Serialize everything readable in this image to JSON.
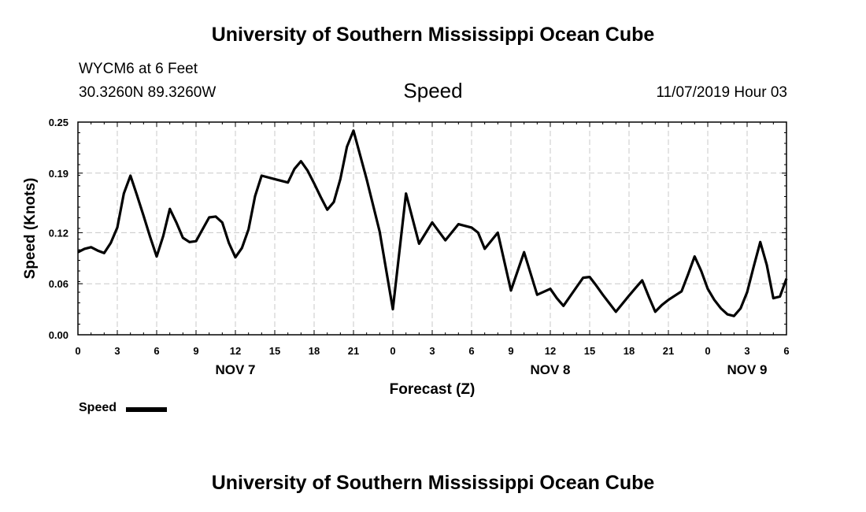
{
  "header": {
    "title": "University of Southern Mississippi Ocean Cube",
    "station": "WYCM6 at 6 Feet",
    "coordinates": "30.3260N 89.3260W",
    "variable": "Speed",
    "datetime": "11/07/2019 Hour 03"
  },
  "footer": {
    "title": "University of Southern Mississippi Ocean Cube"
  },
  "legend": {
    "label": "Speed"
  },
  "chart_data": {
    "type": "line",
    "xlabel": "Forecast (Z)",
    "ylabel": "Speed (Knots)",
    "x_unit": "forecast hour from 11/07/2019 00Z",
    "xlim": [
      0,
      54
    ],
    "ylim": [
      0,
      0.25
    ],
    "yticks": [
      0.0,
      0.06,
      0.12,
      0.19,
      0.25
    ],
    "ytick_labels": [
      "0.00",
      "0.06",
      "0.12",
      "0.19",
      "0.25"
    ],
    "xticks": [
      0,
      3,
      6,
      9,
      12,
      15,
      18,
      21,
      24,
      27,
      30,
      33,
      36,
      39,
      42,
      45,
      48,
      51,
      54
    ],
    "xtick_labels": [
      "0",
      "3",
      "6",
      "9",
      "12",
      "15",
      "18",
      "21",
      "0",
      "3",
      "6",
      "9",
      "12",
      "15",
      "18",
      "21",
      "0",
      "3",
      "6"
    ],
    "day_labels": [
      {
        "x": 12,
        "label": "NOV 7"
      },
      {
        "x": 36,
        "label": "NOV 8"
      },
      {
        "x": 51,
        "label": "NOV 9"
      }
    ],
    "grid": true,
    "legend_position": "bottom-left",
    "series": [
      {
        "name": "Speed",
        "color": "#000000",
        "x": [
          0,
          0.5,
          1,
          1.5,
          2,
          2.5,
          3,
          3.5,
          4,
          4.5,
          5,
          5.5,
          6,
          6.5,
          7,
          7.5,
          8,
          8.5,
          9,
          9.5,
          10,
          10.5,
          11,
          11.5,
          12,
          12.5,
          13,
          13.5,
          14,
          15,
          16,
          16.5,
          17,
          17.5,
          18,
          18.5,
          19,
          19.5,
          20,
          20.5,
          21,
          22,
          23,
          24,
          25,
          26,
          27,
          28,
          29,
          30,
          30.5,
          31,
          32,
          33,
          34,
          35,
          36,
          36.5,
          37,
          38,
          38.5,
          39,
          39.5,
          40,
          40.5,
          41,
          42,
          42.5,
          43,
          43.5,
          44,
          44.5,
          45,
          45.5,
          46,
          46.5,
          47,
          47.5,
          48,
          48.5,
          49,
          49.5,
          50,
          50.5,
          51,
          51.5,
          52,
          52.5,
          53,
          53.5,
          54
        ],
        "values": [
          0.097,
          0.101,
          0.103,
          0.099,
          0.096,
          0.108,
          0.126,
          0.166,
          0.187,
          0.164,
          0.14,
          0.115,
          0.092,
          0.116,
          0.148,
          0.132,
          0.114,
          0.109,
          0.11,
          0.124,
          0.138,
          0.139,
          0.132,
          0.108,
          0.091,
          0.102,
          0.124,
          0.163,
          0.187,
          0.183,
          0.179,
          0.195,
          0.204,
          0.193,
          0.178,
          0.162,
          0.147,
          0.156,
          0.183,
          0.221,
          0.24,
          0.183,
          0.121,
          0.03,
          0.166,
          0.107,
          0.132,
          0.111,
          0.13,
          0.126,
          0.12,
          0.101,
          0.12,
          0.052,
          0.097,
          0.047,
          0.054,
          0.043,
          0.034,
          0.056,
          0.067,
          0.068,
          0.058,
          0.047,
          0.037,
          0.027,
          0.046,
          0.055,
          0.064,
          0.045,
          0.027,
          0.035,
          0.041,
          0.046,
          0.051,
          0.071,
          0.092,
          0.075,
          0.054,
          0.041,
          0.031,
          0.024,
          0.022,
          0.031,
          0.05,
          0.08,
          0.109,
          0.082,
          0.043,
          0.045,
          0.066
        ]
      }
    ]
  }
}
